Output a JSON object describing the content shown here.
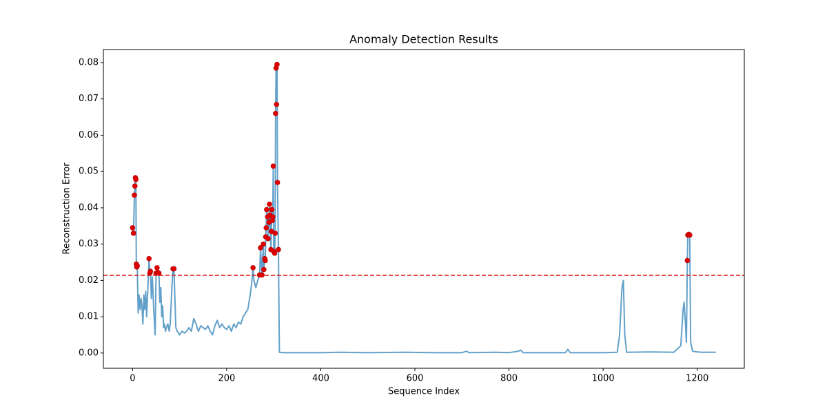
{
  "chart_data": {
    "type": "line",
    "title": "Anomaly Detection Results",
    "x_label": "Sequence Index",
    "y_label": "Reconstruction Error",
    "xlim": [
      -62,
      1300
    ],
    "ylim": [
      -0.0042,
      0.0836
    ],
    "xticks": [
      0,
      200,
      400,
      600,
      800,
      1000,
      1200
    ],
    "yticks": [
      {
        "value": 0,
        "label": "0.00"
      },
      0.01,
      0.02,
      0.03,
      0.04,
      0.05,
      0.06,
      0.07,
      0.08
    ],
    "threshold": {
      "value": 0.0214,
      "color": "#e01010",
      "dashed": true
    },
    "series": [
      {
        "type": "line",
        "color": "#62a0ca",
        "x": [
          0,
          2,
          4,
          5,
          6,
          7,
          8,
          9,
          10,
          12,
          14,
          16,
          18,
          20,
          22,
          24,
          26,
          28,
          30,
          32,
          35,
          37,
          38,
          40,
          42,
          45,
          48,
          50,
          52,
          54,
          56,
          58,
          60,
          62,
          64,
          66,
          68,
          70,
          72,
          75,
          78,
          80,
          84,
          86,
          88,
          90,
          92,
          95,
          100,
          105,
          110,
          115,
          120,
          125,
          130,
          135,
          140,
          145,
          150,
          155,
          160,
          165,
          170,
          175,
          180,
          185,
          190,
          195,
          200,
          205,
          210,
          215,
          220,
          225,
          230,
          235,
          240,
          245,
          250,
          253,
          256,
          258,
          262,
          266,
          270,
          272,
          275,
          278,
          279,
          281,
          282,
          283,
          284,
          285,
          287,
          288,
          290,
          291,
          292,
          294,
          295,
          296,
          297,
          298,
          299,
          300,
          302,
          303,
          304,
          305,
          306,
          307,
          308,
          310,
          312,
          320,
          400,
          440,
          500,
          580,
          640,
          700,
          710,
          715,
          770,
          800,
          820,
          825,
          830,
          900,
          920,
          925,
          930,
          1000,
          1030,
          1035,
          1040,
          1043,
          1046,
          1050,
          1100,
          1150,
          1165,
          1170,
          1172,
          1175,
          1177,
          1179,
          1180,
          1182,
          1184,
          1186,
          1190,
          1200,
          1210,
          1240
        ],
        "values": [
          0.0345,
          0.033,
          0.0435,
          0.046,
          0.0483,
          0.0478,
          0.0245,
          0.0237,
          0.024,
          0.011,
          0.016,
          0.012,
          0.015,
          0.013,
          0.008,
          0.016,
          0.012,
          0.017,
          0.01,
          0.016,
          0.026,
          0.022,
          0.0225,
          0.015,
          0.021,
          0.012,
          0.005,
          0.022,
          0.0235,
          0.0222,
          0.022,
          0.014,
          0.018,
          0.01,
          0.013,
          0.007,
          0.008,
          0.006,
          0.007,
          0.008,
          0.006,
          0.008,
          0.019,
          0.0232,
          0.0232,
          0.015,
          0.007,
          0.006,
          0.005,
          0.006,
          0.0055,
          0.006,
          0.007,
          0.006,
          0.0095,
          0.008,
          0.006,
          0.0075,
          0.007,
          0.0065,
          0.0075,
          0.006,
          0.005,
          0.0075,
          0.009,
          0.007,
          0.008,
          0.007,
          0.0065,
          0.0075,
          0.006,
          0.008,
          0.007,
          0.0085,
          0.008,
          0.01,
          0.011,
          0.012,
          0.016,
          0.019,
          0.0235,
          0.02,
          0.018,
          0.02,
          0.0215,
          0.029,
          0.0215,
          0.03,
          0.023,
          0.026,
          0.0255,
          0.032,
          0.0345,
          0.0395,
          0.0375,
          0.0315,
          0.036,
          0.041,
          0.038,
          0.0285,
          0.0335,
          0.0395,
          0.0365,
          0.0375,
          0.0515,
          0.028,
          0.0275,
          0.033,
          0.066,
          0.0785,
          0.0685,
          0.0795,
          0.047,
          0.0285,
          0.0002,
          0.0001,
          0.0001,
          0.0002,
          0.0001,
          0.0002,
          0.0001,
          0.0001,
          0.0005,
          0.0001,
          0.0002,
          0.0001,
          0.0005,
          0.0008,
          0.0001,
          0.0001,
          0.0001,
          0.001,
          0.0001,
          0.0001,
          0.0002,
          0.005,
          0.018,
          0.02,
          0.005,
          0.0002,
          0.0003,
          0.0002,
          0.002,
          0.012,
          0.014,
          0.008,
          0.003,
          0.0255,
          0.0325,
          0.0327,
          0.0325,
          0.003,
          0.0005,
          0.0003,
          0.0002,
          0.0002
        ]
      },
      {
        "type": "scatter",
        "color": "#e00000",
        "x": [
          0,
          2,
          4,
          5,
          6,
          7,
          8,
          9,
          10,
          35,
          37,
          38,
          50,
          52,
          54,
          56,
          86,
          88,
          256,
          270,
          272,
          275,
          278,
          279,
          281,
          282,
          283,
          284,
          285,
          287,
          288,
          290,
          291,
          292,
          294,
          295,
          296,
          297,
          298,
          299,
          300,
          302,
          303,
          304,
          305,
          306,
          307,
          308,
          310,
          1179,
          1180,
          1182,
          1184
        ],
        "values": [
          0.0345,
          0.033,
          0.0435,
          0.046,
          0.0483,
          0.0478,
          0.0245,
          0.0237,
          0.024,
          0.026,
          0.022,
          0.0225,
          0.022,
          0.0235,
          0.0222,
          0.022,
          0.0232,
          0.0232,
          0.0235,
          0.0215,
          0.029,
          0.0215,
          0.03,
          0.023,
          0.026,
          0.0255,
          0.032,
          0.0345,
          0.0395,
          0.0375,
          0.0315,
          0.036,
          0.041,
          0.038,
          0.0285,
          0.0335,
          0.0395,
          0.0365,
          0.0375,
          0.0515,
          0.028,
          0.0275,
          0.033,
          0.066,
          0.0785,
          0.0685,
          0.0795,
          0.047,
          0.0285,
          0.0255,
          0.0325,
          0.0327,
          0.0325
        ]
      }
    ]
  }
}
